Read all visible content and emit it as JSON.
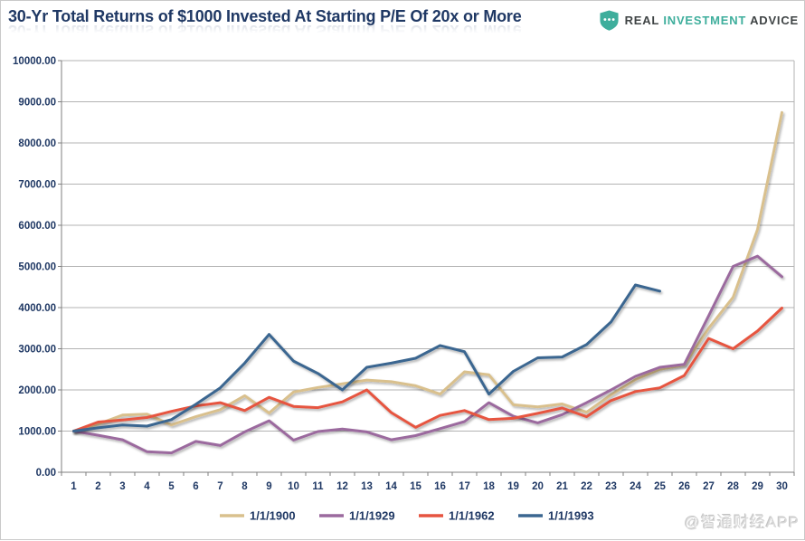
{
  "header": {
    "title": "30-Yr Total Returns of $1000 Invested At Starting P/E Of 20x or More",
    "logo": {
      "real": "REAL",
      "investment": "INVESTMENT",
      "advice": "ADVICE"
    }
  },
  "watermark": "@智通财经APP",
  "colors": {
    "title": "#1F3864",
    "axis_text": "#1F3864",
    "gridline": "#b3b3b3",
    "axis_line": "#7f7f7f",
    "logo_teal": "#3EAE9C",
    "logo_dark": "#3f4445",
    "watermark": "#d9d9d9"
  },
  "chart_data": {
    "type": "line",
    "title": "30-Yr Total Returns of $1000 Invested At Starting P/E Of 20x or More",
    "xlabel": "",
    "ylabel": "",
    "x": [
      1,
      2,
      3,
      4,
      5,
      6,
      7,
      8,
      9,
      10,
      11,
      12,
      13,
      14,
      15,
      16,
      17,
      18,
      19,
      20,
      21,
      22,
      23,
      24,
      25,
      26,
      27,
      28,
      29,
      30
    ],
    "ylim": [
      0,
      10000
    ],
    "ytick_step": 1000,
    "ytick_labels": [
      "0.00",
      "1000.00",
      "2000.00",
      "3000.00",
      "4000.00",
      "5000.00",
      "6000.00",
      "7000.00",
      "8000.00",
      "9000.00",
      "10000.00"
    ],
    "grid": "horizontal",
    "legend_position": "bottom",
    "series": [
      {
        "name": "1/1/1900",
        "color": "#D9C08D",
        "values": [
          1000,
          1170,
          1390,
          1410,
          1150,
          1350,
          1520,
          1860,
          1440,
          1950,
          2060,
          2150,
          2240,
          2200,
          2100,
          1900,
          2440,
          2370,
          1640,
          1590,
          1660,
          1460,
          1880,
          2250,
          2500,
          2600,
          3500,
          4250,
          5900,
          8740
        ]
      },
      {
        "name": "1/1/1929",
        "color": "#9B6A9E",
        "values": [
          1000,
          900,
          790,
          500,
          470,
          750,
          650,
          980,
          1250,
          780,
          990,
          1050,
          980,
          790,
          890,
          1060,
          1230,
          1690,
          1360,
          1200,
          1400,
          1690,
          2000,
          2330,
          2550,
          2620,
          3800,
          5000,
          5250,
          4750
        ]
      },
      {
        "name": "1/1/1962",
        "color": "#E65440",
        "values": [
          1000,
          1220,
          1270,
          1330,
          1480,
          1610,
          1690,
          1500,
          1820,
          1600,
          1570,
          1710,
          2000,
          1450,
          1090,
          1380,
          1500,
          1280,
          1310,
          1430,
          1560,
          1350,
          1740,
          1960,
          2050,
          2350,
          3250,
          3000,
          3430,
          3990
        ]
      },
      {
        "name": "1/1/1993",
        "color": "#3A6690",
        "values": [
          1000,
          1080,
          1150,
          1120,
          1280,
          1650,
          2050,
          2650,
          3350,
          2700,
          2400,
          2000,
          2550,
          2650,
          2770,
          3080,
          2930,
          1900,
          2450,
          2780,
          2800,
          3100,
          3650,
          4550,
          4400,
          null,
          null,
          null,
          null,
          null
        ]
      }
    ]
  }
}
